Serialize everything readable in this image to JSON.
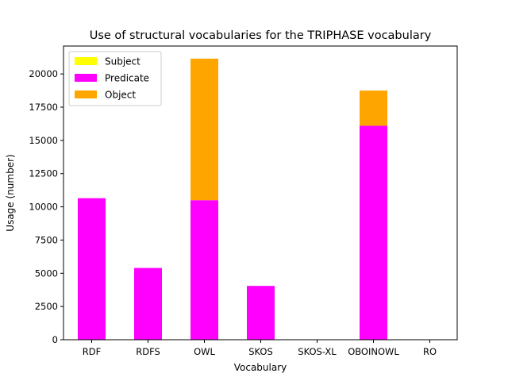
{
  "chart_data": {
    "type": "bar",
    "stacked": true,
    "title": "Use of structural vocabularies for the TRIPHASE vocabulary",
    "xlabel": "Vocabulary",
    "ylabel": "Usage (number)",
    "ylim": [
      0,
      22100
    ],
    "yticks": [
      0,
      2500,
      5000,
      7500,
      10000,
      12500,
      15000,
      17500,
      20000
    ],
    "legend_position": "top-left",
    "grid": false,
    "categories": [
      "RDF",
      "RDFS",
      "OWL",
      "SKOS",
      "SKOS-XL",
      "OBOINOWL",
      "RO"
    ],
    "series": [
      {
        "name": "Subject",
        "color": "#ffff00",
        "values": [
          0,
          0,
          0,
          0,
          0,
          0,
          0
        ]
      },
      {
        "name": "Predicate",
        "color": "#ff00ff",
        "values": [
          10650,
          5400,
          10500,
          4050,
          0,
          16100,
          0
        ]
      },
      {
        "name": "Object",
        "color": "#ffa500",
        "values": [
          0,
          0,
          10650,
          0,
          0,
          2650,
          0
        ]
      }
    ]
  }
}
